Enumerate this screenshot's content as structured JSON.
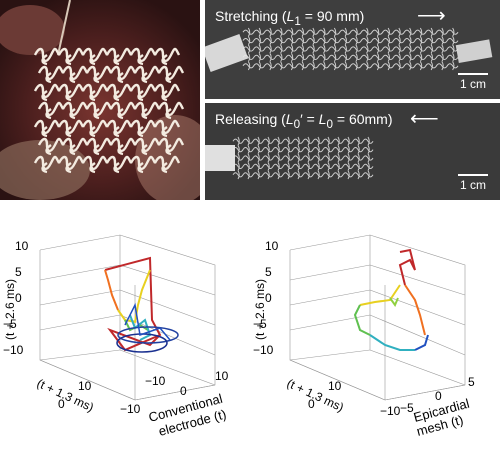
{
  "stretch": {
    "label_prefix": "Stretching (",
    "var": "L",
    "sub": "1",
    "label_suffix": " = 90 mm)",
    "scale": "1 cm"
  },
  "release": {
    "label_prefix": "Releasing (",
    "var1": "L",
    "sub1": "0",
    "mid": "′ = ",
    "var2": "L",
    "sub2": "0",
    "label_suffix": " = 60mm)",
    "scale": "1 cm"
  },
  "plots": [
    {
      "zlabel": "(t + 2.6 ms)",
      "ylabel": "(t + 1.3 ms)",
      "xlabel_line1": "Conventional",
      "xlabel_line2": "electrode (t)",
      "z_ticks": [
        "10",
        "5",
        "0",
        "−5",
        "−10"
      ],
      "y_ticks": [
        "10",
        "0",
        "−10"
      ],
      "x_ticks": [
        "−10",
        "0",
        "10"
      ]
    },
    {
      "zlabel": "(t + 2.6 ms)",
      "ylabel": "(t + 1.3 ms)",
      "xlabel_line1": "Epicardial",
      "xlabel_line2": "mesh (t)",
      "z_ticks": [
        "10",
        "5",
        "0",
        "−5",
        "−10"
      ],
      "y_ticks": [
        "10",
        "0",
        "−10"
      ],
      "x_ticks": [
        "−10",
        "−5",
        "0",
        "5"
      ]
    }
  ]
}
